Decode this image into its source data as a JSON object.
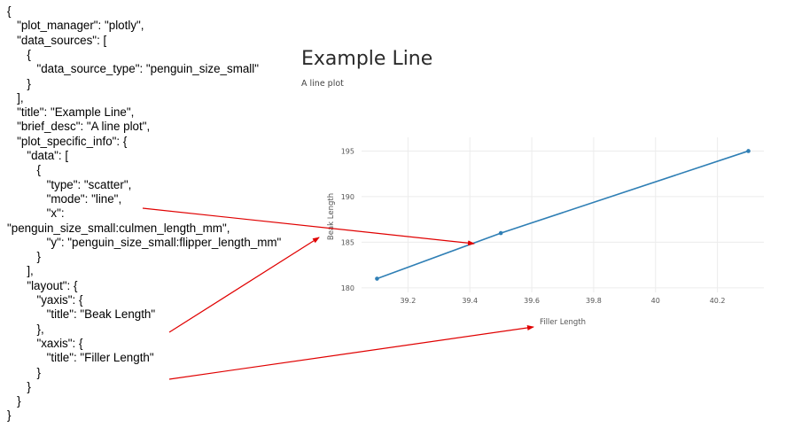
{
  "code_lines": [
    "{",
    "   \"plot_manager\": \"plotly\",",
    "   \"data_sources\": [",
    "      {",
    "         \"data_source_type\": \"penguin_size_small\"",
    "      }",
    "   ],",
    "   \"title\": \"Example Line\",",
    "   \"brief_desc\": \"A line plot\",",
    "   \"plot_specific_info\": {",
    "      \"data\": [",
    "         {",
    "            \"type\": \"scatter\",",
    "            \"mode\": \"line\",",
    "            \"x\":",
    "\"penguin_size_small:culmen_length_mm\",",
    "            \"y\": \"penguin_size_small:flipper_length_mm\"",
    "         }",
    "      ],",
    "      \"layout\": {",
    "         \"yaxis\": {",
    "            \"title\": \"Beak Length\"",
    "         },",
    "         \"xaxis\": {",
    "            \"title\": \"Filler Length\"",
    "         }",
    "      }",
    "   }",
    "}"
  ],
  "plot": {
    "title": "Example Line",
    "subtitle": "A line plot"
  },
  "chart_data": {
    "type": "line",
    "x": [
      39.1,
      39.5,
      40.3
    ],
    "y": [
      181,
      186,
      195
    ],
    "xlabel": "Filler Length",
    "ylabel": "Beak Length",
    "xlim": [
      39.05,
      40.35
    ],
    "ylim": [
      179.5,
      196.5
    ],
    "xticks": [
      39.2,
      39.4,
      39.6,
      39.8,
      40,
      40.2
    ],
    "xtick_labels": [
      "39.2",
      "39.4",
      "39.6",
      "39.8",
      "40",
      "40.2"
    ],
    "yticks": [
      180,
      185,
      190,
      195
    ],
    "ytick_labels": [
      "180",
      "185",
      "190",
      "195"
    ],
    "grid": true,
    "line_color": "#2f7fb5",
    "arrow_color": "#e00000"
  }
}
